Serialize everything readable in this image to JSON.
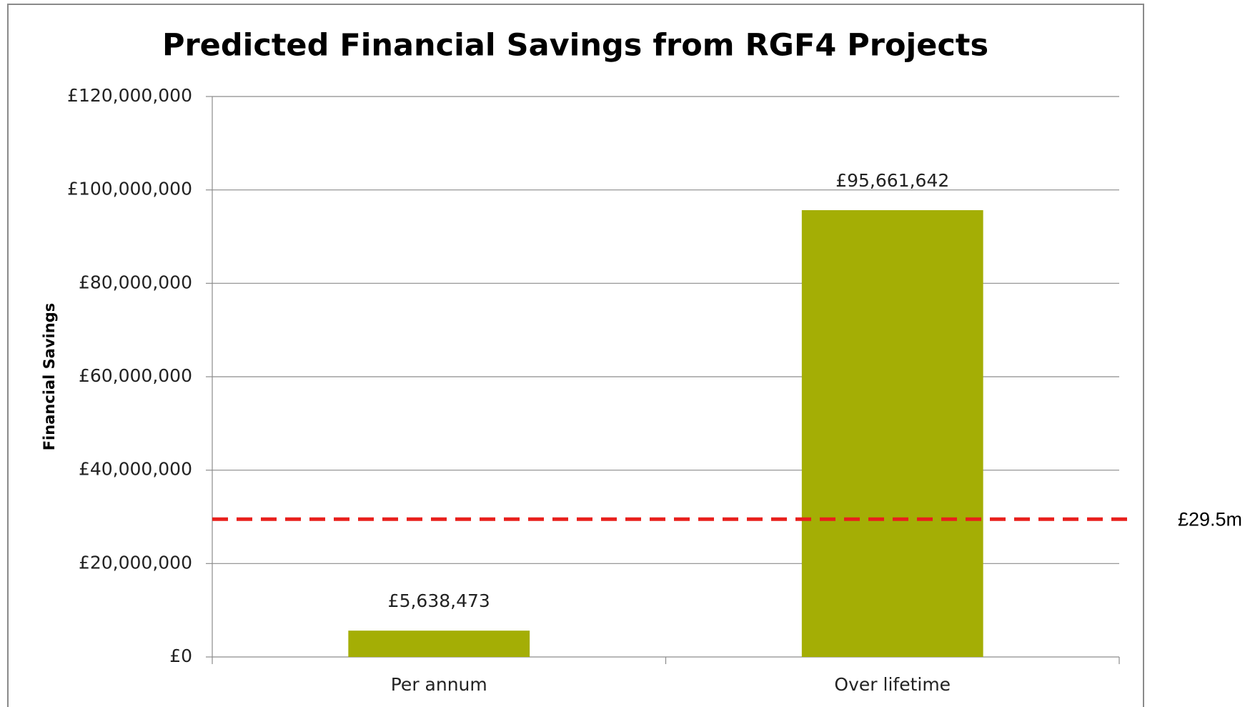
{
  "chart_data": {
    "type": "bar",
    "title": "Predicted Financial Savings from RGF4 Projects",
    "y_axis_label": "Financial Savings",
    "categories": [
      "Per annum",
      "Over lifetime"
    ],
    "values": [
      5638473,
      95661642
    ],
    "value_labels": [
      "£5,638,473",
      "£95,661,642"
    ],
    "color": "#a4ae05",
    "ylim": [
      0,
      120000000
    ],
    "yticks": [
      {
        "value": 0,
        "label": "£0"
      },
      {
        "value": 20000000,
        "label": "£20,000,000"
      },
      {
        "value": 40000000,
        "label": "£40,000,000"
      },
      {
        "value": 60000000,
        "label": "£60,000,000"
      },
      {
        "value": 80000000,
        "label": "£80,000,000"
      },
      {
        "value": 100000000,
        "label": "£100,000,000"
      },
      {
        "value": 120000000,
        "label": "£120,000,000"
      }
    ],
    "grid": true,
    "reference_line": {
      "value": 29500000,
      "label": "£29.5m",
      "color": "#e8201c"
    }
  }
}
